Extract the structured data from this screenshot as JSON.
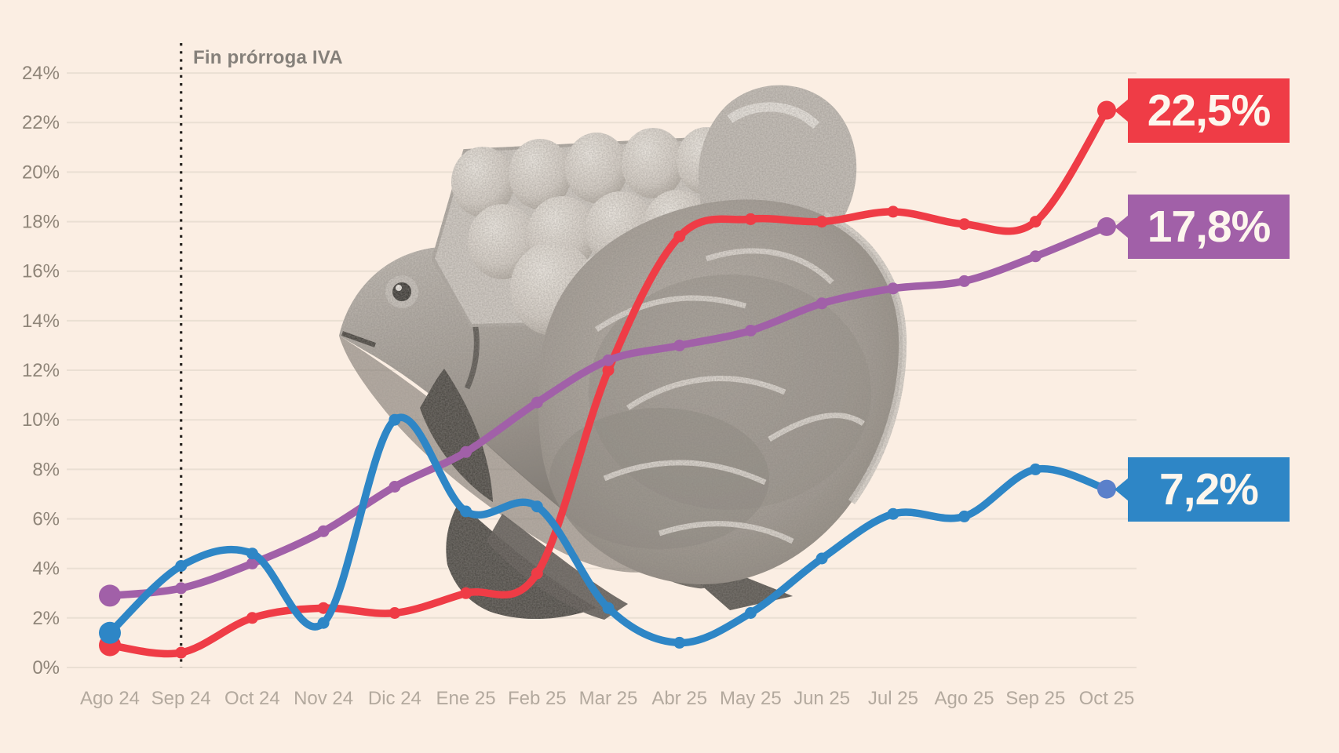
{
  "colors": {
    "background": "#fbeee3",
    "grid_line": "#eadfd3",
    "axis_label": "#8f8579",
    "x_axis_label": "#b3a99e",
    "annotation_text": "#85807a",
    "vline": "#26221f",
    "label_text": "#fdf6ed"
  },
  "chart_data": {
    "type": "line",
    "categories": [
      "Ago 24",
      "Sep 24",
      "Oct 24",
      "Nov 24",
      "Dic 24",
      "Ene 25",
      "Feb 25",
      "Mar 25",
      "Abr 25",
      "May 25",
      "Jun 25",
      "Jul 25",
      "Ago 25",
      "Sep 25",
      "Oct 25"
    ],
    "series": [
      {
        "name": "red-line",
        "color": "#ef3c46",
        "end_label": "22,5%",
        "values": [
          0.9,
          0.6,
          2.0,
          2.4,
          2.2,
          3.0,
          3.8,
          12.0,
          17.4,
          18.1,
          18.0,
          18.4,
          17.9,
          18.0,
          22.5
        ]
      },
      {
        "name": "purple-line",
        "color": "#a160a8",
        "end_label": "17,8%",
        "values": [
          2.9,
          3.2,
          4.2,
          5.5,
          7.3,
          8.7,
          10.7,
          12.4,
          13.0,
          13.6,
          14.7,
          15.3,
          15.6,
          16.6,
          17.8
        ]
      },
      {
        "name": "blue-line",
        "color": "#2e86c6",
        "end_dot_color": "#5b80ca",
        "end_label": "7,2%",
        "values": [
          1.4,
          4.1,
          4.6,
          1.8,
          10.0,
          6.3,
          6.5,
          2.4,
          1.0,
          2.2,
          4.4,
          6.2,
          6.1,
          8.0,
          7.2
        ]
      }
    ],
    "ylim": [
      0,
      24
    ],
    "ytick_step": 2,
    "ytick_suffix": "%",
    "grid": true,
    "legend": "none",
    "vline": {
      "label": "Fin prórroga IVA",
      "at_category": "Sep 24"
    }
  }
}
